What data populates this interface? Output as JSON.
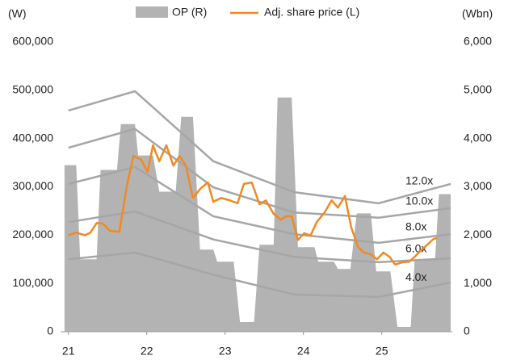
{
  "chart_data": {
    "type": "line",
    "y_label": "(W)",
    "y2_label": "(Wbn)",
    "xlim": [
      20.9,
      25.9
    ],
    "xticks": [
      21,
      22,
      23,
      24,
      25
    ],
    "ylim": [
      0,
      600000
    ],
    "yticks": [
      0,
      {
        "value": 100000,
        "label": "100,000"
      },
      {
        "value": 200000,
        "label": "200,000"
      },
      {
        "value": 300000,
        "label": "300,000"
      },
      {
        "value": 400000,
        "label": "400,000"
      },
      {
        "value": 500000,
        "label": "500,000"
      },
      {
        "value": 600000,
        "label": "600,000"
      }
    ],
    "y2lim": [
      0,
      6000
    ],
    "y2ticks": [
      0,
      {
        "value": 1000,
        "label": "1,000"
      },
      {
        "value": 2000,
        "label": "2,000"
      },
      {
        "value": 3000,
        "label": "3,000"
      },
      {
        "value": 4000,
        "label": "4,000"
      },
      {
        "value": 5000,
        "label": "5,000"
      },
      {
        "value": 6000,
        "label": "6,000"
      }
    ],
    "series": [
      {
        "name": "OP (R)",
        "kind": "area",
        "axis": "y2",
        "color": "#b3b3b3",
        "x": [
          20.95,
          21.1,
          21.15,
          21.36,
          21.41,
          21.62,
          21.67,
          21.85,
          21.89,
          22.08,
          22.16,
          22.37,
          22.44,
          22.59,
          22.68,
          22.85,
          22.9,
          23.11,
          23.19,
          23.37,
          23.44,
          23.62,
          23.67,
          23.85,
          23.93,
          24.14,
          24.19,
          24.39,
          24.44,
          24.6,
          24.68,
          24.86,
          24.93,
          25.11,
          25.2,
          25.37,
          25.42,
          25.68,
          25.73,
          25.88
        ],
        "values": [
          3450,
          3450,
          1500,
          1500,
          3350,
          3350,
          4300,
          4300,
          3650,
          3650,
          2900,
          2900,
          4450,
          4450,
          1700,
          1700,
          1450,
          1450,
          200,
          200,
          1800,
          1800,
          4850,
          4850,
          1750,
          1750,
          1450,
          1450,
          1300,
          1300,
          2450,
          2450,
          1250,
          1250,
          100,
          100,
          1500,
          1500,
          2850,
          2850
        ]
      },
      {
        "name": "Adj. share price (L)",
        "kind": "line",
        "color": "#f08a24",
        "x": [
          21.0,
          21.1,
          21.21,
          21.28,
          21.36,
          21.44,
          21.53,
          21.65,
          21.75,
          21.83,
          21.93,
          22.01,
          22.08,
          22.16,
          22.25,
          22.34,
          22.42,
          22.5,
          22.59,
          22.69,
          22.78,
          22.85,
          22.95,
          23.06,
          23.16,
          23.24,
          23.34,
          23.44,
          23.52,
          23.62,
          23.71,
          23.78,
          23.85,
          23.93,
          24.01,
          24.09,
          24.17,
          24.27,
          24.36,
          24.44,
          24.53,
          24.61,
          24.7,
          24.77,
          24.86,
          24.94,
          25.02,
          25.1,
          25.17,
          25.27,
          25.35,
          25.42,
          25.49,
          25.58,
          25.66,
          25.71
        ],
        "values": [
          200000,
          205000,
          200000,
          205000,
          225000,
          224000,
          209000,
          207000,
          305000,
          364000,
          356000,
          331000,
          386000,
          353000,
          386000,
          344000,
          364000,
          344000,
          277000,
          297000,
          309000,
          269000,
          277000,
          272000,
          266000,
          306000,
          309000,
          264000,
          272000,
          244000,
          232000,
          239000,
          239000,
          190000,
          204000,
          199000,
          227000,
          247000,
          272000,
          257000,
          281000,
          216000,
          175000,
          164000,
          160000,
          150000,
          164000,
          155000,
          139000,
          144000,
          145000,
          155000,
          167000,
          180000,
          192000,
          194000
        ]
      },
      {
        "name": "12.0x",
        "kind": "band",
        "color": "#a6a6a6",
        "x": [
          21.0,
          21.85,
          22.85,
          23.88,
          24.96,
          25.88
        ],
        "values": [
          458000,
          498000,
          353000,
          289000,
          266000,
          306000
        ]
      },
      {
        "name": "10.0x",
        "kind": "band",
        "color": "#a6a6a6",
        "x": [
          21.0,
          21.85,
          22.85,
          23.88,
          24.96,
          25.88
        ],
        "values": [
          381000,
          420000,
          299000,
          247000,
          236000,
          256000
        ]
      },
      {
        "name": "8.0x",
        "kind": "band",
        "color": "#a6a6a6",
        "x": [
          21.0,
          21.85,
          22.85,
          23.88,
          24.96,
          25.88
        ],
        "values": [
          306000,
          341000,
          239000,
          202000,
          184000,
          202000
        ]
      },
      {
        "name": "6.0x",
        "kind": "band",
        "color": "#a6a6a6",
        "x": [
          21.0,
          21.85,
          22.85,
          23.88,
          24.96,
          25.88
        ],
        "values": [
          227000,
          249000,
          191000,
          155000,
          144000,
          152000
        ]
      },
      {
        "name": "4.0x",
        "kind": "band",
        "color": "#a6a6a6",
        "x": [
          21.0,
          21.85,
          22.85,
          23.88,
          24.96,
          25.88
        ],
        "values": [
          150000,
          164000,
          118000,
          77000,
          72000,
          102000
        ]
      }
    ]
  }
}
